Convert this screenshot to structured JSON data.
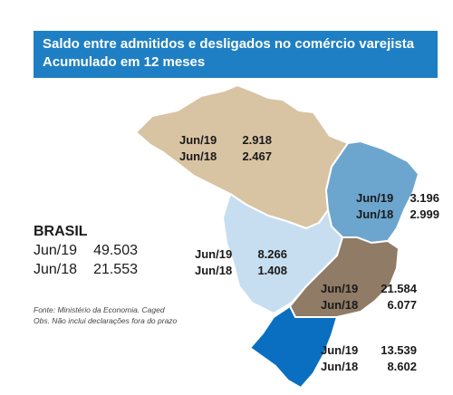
{
  "title": {
    "line1": "Saldo entre admitidos e desligados no comércio varejista",
    "line2": "Acumulado em 12 meses"
  },
  "colors": {
    "title_bg": "#1f7fc4",
    "norte": "#d8c3a3",
    "nordeste": "#6ca6cf",
    "centro_oeste": "#c7def0",
    "sudeste": "#8f7b66",
    "sul": "#0a6fc0"
  },
  "regions": {
    "norte": {
      "rows": [
        {
          "period": "Jun/19",
          "value": "2.918"
        },
        {
          "period": "Jun/18",
          "value": "2.467"
        }
      ]
    },
    "nordeste": {
      "rows": [
        {
          "period": "Jun/19",
          "value": "3.196"
        },
        {
          "period": "Jun/18",
          "value": "2.999"
        }
      ]
    },
    "centro_oeste": {
      "rows": [
        {
          "period": "Jun/19",
          "value": "8.266"
        },
        {
          "period": "Jun/18",
          "value": "1.408"
        }
      ]
    },
    "sudeste": {
      "rows": [
        {
          "period": "Jun/19",
          "value": "21.584"
        },
        {
          "period": "Jun/18",
          "value": "6.077"
        }
      ]
    },
    "sul": {
      "rows": [
        {
          "period": "Jun/19",
          "value": "13.539"
        },
        {
          "period": "Jun/18",
          "value": "8.602"
        }
      ]
    }
  },
  "brasil": {
    "label": "BRASIL",
    "rows": [
      {
        "period": "Jun/19",
        "value": "49.503"
      },
      {
        "period": "Jun/18",
        "value": "21.553"
      }
    ]
  },
  "source": {
    "line1": "Fonte: Ministério da Economia. Caged",
    "line2": "Obs. Não inclui declarações fora do prazo"
  }
}
